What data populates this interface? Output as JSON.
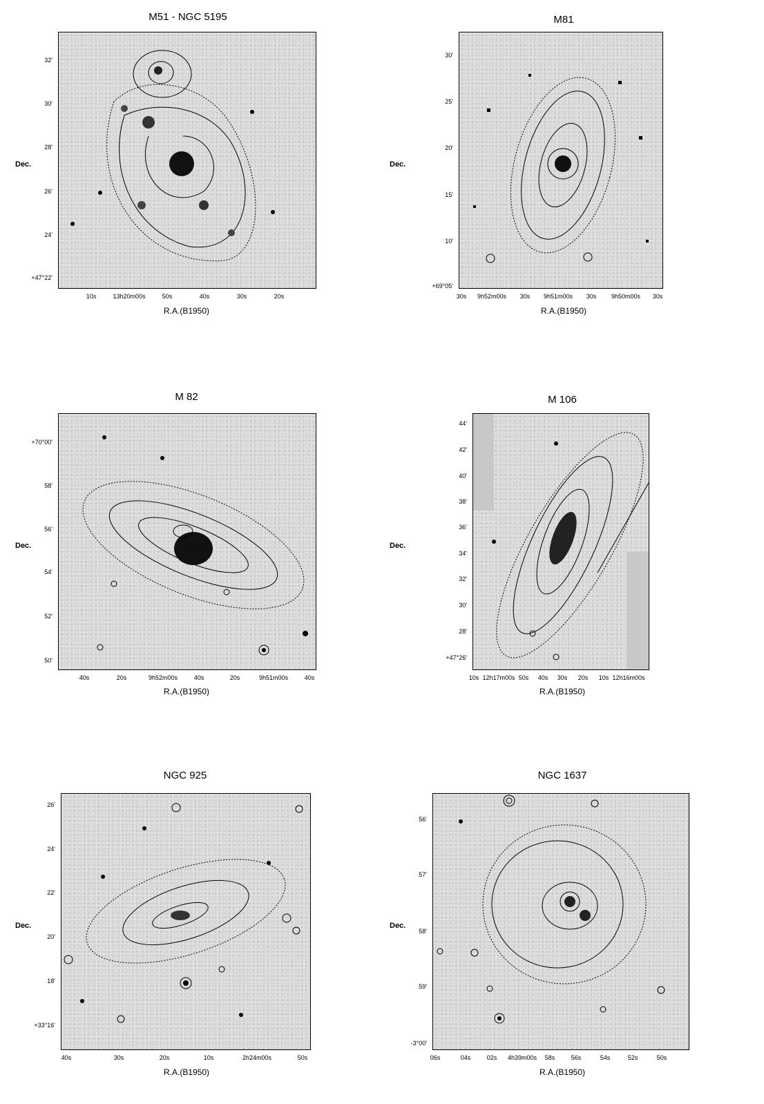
{
  "figure": {
    "panels": [
      {
        "id": "m51",
        "title": "M51 - NGC 5195",
        "ylabel": "Dec.",
        "xlabel": "R.A.(B1950)",
        "yticks": [
          "32'",
          "30'",
          "28'",
          "26'",
          "24'",
          "+47°22'"
        ],
        "xticks": [
          "10s",
          "13h20m00s",
          "50s",
          "40s",
          "30s",
          "20s"
        ]
      },
      {
        "id": "m81",
        "title": "M81",
        "ylabel": "Dec.",
        "xlabel": "R.A.(B1950)",
        "yticks": [
          "30'",
          "25'",
          "20'",
          "15'",
          "10'",
          "+69°05'"
        ],
        "xticks": [
          "30s",
          "9h52m00s",
          "30s",
          "9h51m00s",
          "30s",
          "9h50m00s",
          "30s"
        ]
      },
      {
        "id": "m82",
        "title": "M 82",
        "ylabel": "Dec.",
        "xlabel": "R.A.(B1950)",
        "yticks": [
          "+70°00'",
          "58'",
          "56'",
          "54'",
          "52'",
          "50'"
        ],
        "xticks": [
          "40s",
          "20s",
          "9h52m00s",
          "40s",
          "20s",
          "9h51m00s",
          "40s"
        ]
      },
      {
        "id": "m106",
        "title": "M 106",
        "ylabel": "Dec.",
        "xlabel": "R.A.(B1950)",
        "yticks": [
          "44'",
          "42'",
          "40'",
          "38'",
          "36'",
          "34'",
          "32'",
          "30'",
          "28'",
          "+47°26'"
        ],
        "xticks": [
          "10s",
          "12h17m00s",
          "50s",
          "40s",
          "30s",
          "20s",
          "10s",
          "12h16m00s"
        ]
      },
      {
        "id": "ngc925",
        "title": "NGC 925",
        "ylabel": "Dec.",
        "xlabel": "R.A.(B1950)",
        "yticks": [
          "26'",
          "24'",
          "22'",
          "20'",
          "18'",
          "+33°16'"
        ],
        "xticks": [
          "40s",
          "30s",
          "20s",
          "10s",
          "2h24m00s",
          "50s"
        ]
      },
      {
        "id": "ngc1637",
        "title": "NGC 1637",
        "ylabel": "Dec.",
        "xlabel": "R.A.(B1950)",
        "yticks": [
          "56'",
          "57'",
          "58'",
          "59'",
          "-3°00'"
        ],
        "xticks": [
          "06s",
          "04s",
          "02s",
          "4h39m00s",
          "58s",
          "56s",
          "54s",
          "52s",
          "50s"
        ]
      }
    ]
  }
}
